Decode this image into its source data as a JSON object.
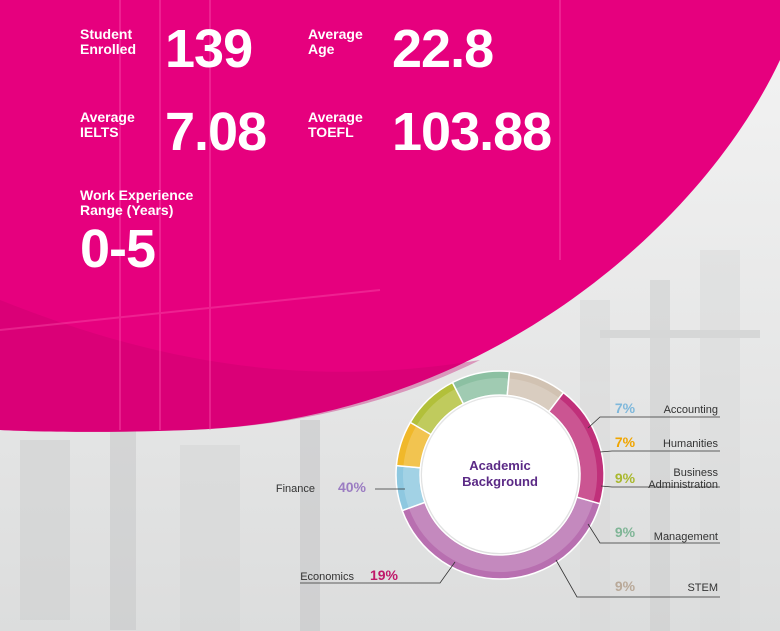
{
  "stats": {
    "students": {
      "label": "Student\nEnrolled",
      "value": "139"
    },
    "age": {
      "label": "Average\nAge",
      "value": "22.8"
    },
    "ielts": {
      "label": "Average\nIELTS",
      "value": "7.08"
    },
    "toefl": {
      "label": "Average\nTOEFL",
      "value": "103.88"
    },
    "experience": {
      "label": "Work Experience\nRange (Years)",
      "value": "0-5"
    }
  },
  "colors": {
    "accent": "#e6007e"
  },
  "chart_data": {
    "type": "pie",
    "title": "Academic Background",
    "slices": [
      {
        "label": "Finance",
        "pct_label": "40%",
        "value": 40,
        "color": "#b86fb0",
        "text_color": "#9b7cc2"
      },
      {
        "label": "Accounting",
        "pct_label": "7%",
        "value": 7,
        "color": "#8ec8e0",
        "text_color": "#7fb8db"
      },
      {
        "label": "Humanities",
        "pct_label": "7%",
        "value": 7,
        "color": "#f0b82a",
        "text_color": "#f0a500"
      },
      {
        "label": "Business\nAdministration",
        "pct_label": "9%",
        "value": 9,
        "color": "#b2c03a",
        "text_color": "#a9b82e"
      },
      {
        "label": "Management",
        "pct_label": "9%",
        "value": 9,
        "color": "#8cc0a2",
        "text_color": "#7fb596"
      },
      {
        "label": "STEM",
        "pct_label": "9%",
        "value": 9,
        "color": "#d1c2b2",
        "text_color": "#b9a999"
      },
      {
        "label": "Economics",
        "pct_label": "19%",
        "value": 19,
        "color": "#c0307a",
        "text_color": "#c0186a"
      }
    ]
  }
}
